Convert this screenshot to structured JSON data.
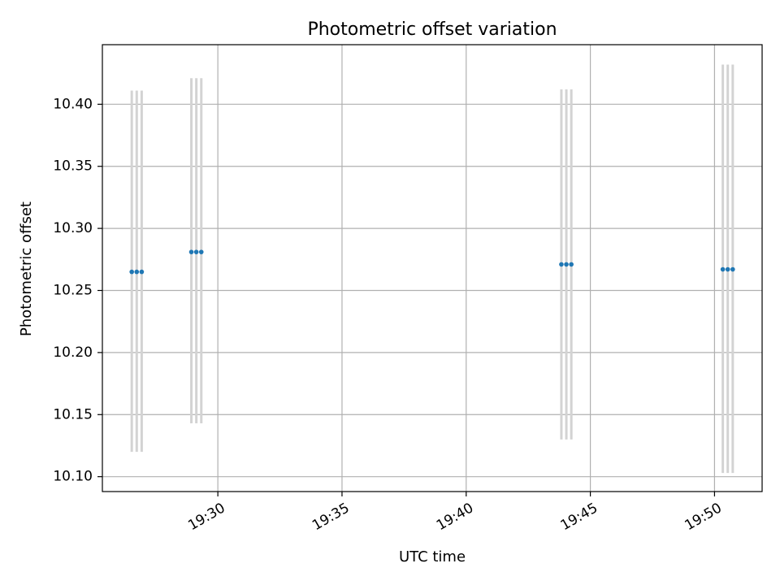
{
  "chart_data": {
    "type": "scatter",
    "title": "Photometric offset variation",
    "xlabel": "UTC time",
    "ylabel": "Photometric offset",
    "grid": true,
    "x_ticks": [
      "19:30",
      "19:35",
      "19:40",
      "19:45",
      "19:50"
    ],
    "y_ticks": [
      "10.10",
      "10.15",
      "10.20",
      "10.25",
      "10.30",
      "10.35",
      "10.40"
    ],
    "xlim": [
      "19:25:21",
      "19:51:55"
    ],
    "ylim": [
      10.088,
      10.448
    ],
    "points": [
      {
        "x": "19:26:32",
        "y": 10.265,
        "ymin": 10.12,
        "ymax": 10.411
      },
      {
        "x": "19:26:44",
        "y": 10.265,
        "ymin": 10.12,
        "ymax": 10.411
      },
      {
        "x": "19:26:56",
        "y": 10.265,
        "ymin": 10.12,
        "ymax": 10.411
      },
      {
        "x": "19:28:56",
        "y": 10.281,
        "ymin": 10.143,
        "ymax": 10.421
      },
      {
        "x": "19:29:08",
        "y": 10.281,
        "ymin": 10.143,
        "ymax": 10.421
      },
      {
        "x": "19:29:20",
        "y": 10.281,
        "ymin": 10.143,
        "ymax": 10.421
      },
      {
        "x": "19:43:50",
        "y": 10.271,
        "ymin": 10.13,
        "ymax": 10.412
      },
      {
        "x": "19:44:02",
        "y": 10.271,
        "ymin": 10.13,
        "ymax": 10.412
      },
      {
        "x": "19:44:14",
        "y": 10.271,
        "ymin": 10.13,
        "ymax": 10.412
      },
      {
        "x": "19:50:20",
        "y": 10.267,
        "ymin": 10.103,
        "ymax": 10.432
      },
      {
        "x": "19:50:32",
        "y": 10.267,
        "ymin": 10.103,
        "ymax": 10.432
      },
      {
        "x": "19:50:44",
        "y": 10.267,
        "ymin": 10.103,
        "ymax": 10.432
      }
    ],
    "colors": {
      "point": "#1f77b4",
      "errorbar": "#d3d3d3",
      "grid": "#b0b0b0",
      "axis": "#000000"
    }
  }
}
